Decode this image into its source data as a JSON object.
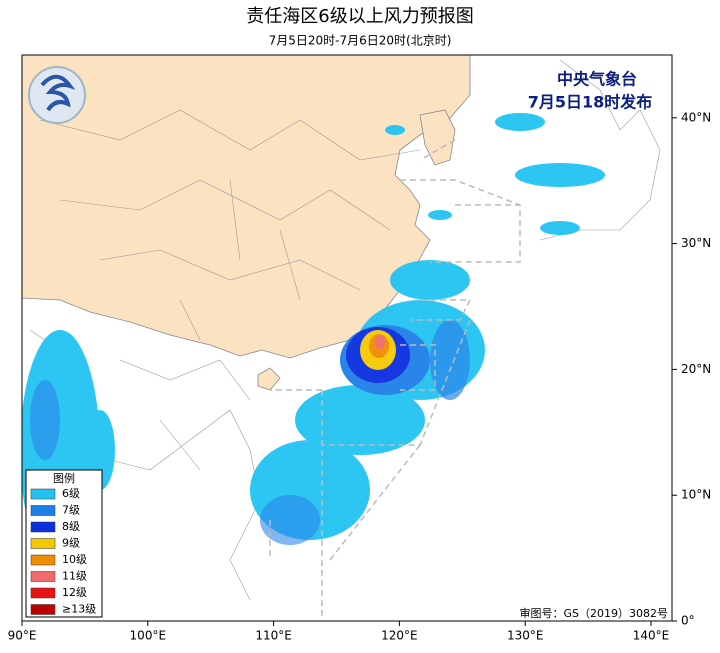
{
  "header": {
    "title": "责任海区6级以上风力预报图",
    "subtitle": "7月5日20时-7月6日20时(北京时)"
  },
  "issuer": {
    "agency": "中央气象台",
    "issued": "7月5日18时发布"
  },
  "map": {
    "lon_ticks": [
      {
        "value": 90,
        "label": "90°E"
      },
      {
        "value": 100,
        "label": "100°E"
      },
      {
        "value": 110,
        "label": "110°E"
      },
      {
        "value": 120,
        "label": "120°E"
      },
      {
        "value": 130,
        "label": "130°E"
      },
      {
        "value": 140,
        "label": "140°E"
      }
    ],
    "lat_ticks": [
      {
        "value": 0,
        "label": "0°"
      },
      {
        "value": 10,
        "label": "10°N"
      },
      {
        "value": 20,
        "label": "20°N"
      },
      {
        "value": 30,
        "label": "30°N"
      },
      {
        "value": 40,
        "label": "40°N"
      }
    ]
  },
  "legend": {
    "title": "图例",
    "items": [
      {
        "label": "6级",
        "color": "#22c3f2"
      },
      {
        "label": "7级",
        "color": "#1f7fe8"
      },
      {
        "label": "8级",
        "color": "#0a2ee0"
      },
      {
        "label": "9级",
        "color": "#f6c800"
      },
      {
        "label": "10级",
        "color": "#f08c00"
      },
      {
        "label": "11级",
        "color": "#f06a6a"
      },
      {
        "label": "12级",
        "color": "#ea1414"
      },
      {
        "label": "≥13级",
        "color": "#c00000"
      }
    ]
  },
  "approval": "审图号：GS（2019）3082号"
}
